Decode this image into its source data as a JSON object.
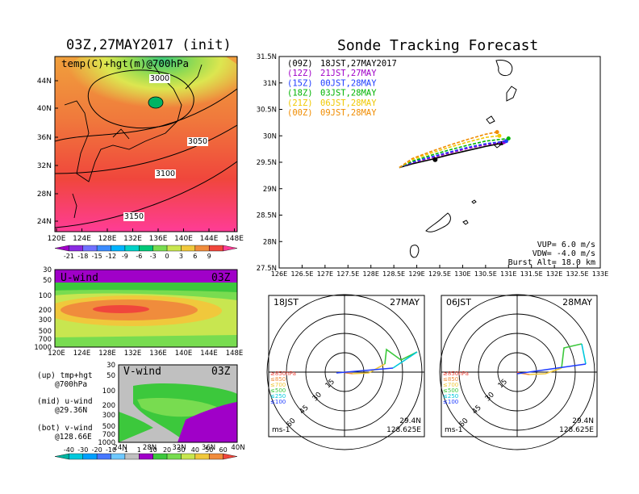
{
  "map_panel": {
    "title": "03Z,27MAY2017 (init)",
    "label": "temp(C)+hgt(m)@700hPa",
    "lat_ticks": [
      "44N",
      "40N",
      "36N",
      "32N",
      "28N",
      "24N"
    ],
    "lon_ticks": [
      "120E",
      "124E",
      "128E",
      "132E",
      "136E",
      "140E",
      "144E",
      "148E"
    ],
    "contour_labels": [
      "3000",
      "3050",
      "3100",
      "3150"
    ]
  },
  "temp_colorbar": {
    "labels": [
      "-21",
      "-18",
      "-15",
      "-12",
      "-9",
      "-6",
      "-3",
      "0",
      "3",
      "6",
      "9"
    ],
    "colors": [
      "#a000c8",
      "#8a2be2",
      "#7070ff",
      "#3c8cff",
      "#00b4ff",
      "#00d2c8",
      "#00c878",
      "#78dc50",
      "#c8e650",
      "#f0c83c",
      "#f08c3c",
      "#f0463c",
      "#ff3c96"
    ]
  },
  "u_wind_panel": {
    "label": "U-wind",
    "time": "03Z",
    "p_ticks": [
      "30",
      "50",
      "100",
      "200",
      "300",
      "500",
      "700",
      "1000"
    ],
    "lon_ticks": [
      "120E",
      "124E",
      "128E",
      "132E",
      "136E",
      "140E",
      "144E",
      "148E"
    ]
  },
  "v_wind_panel": {
    "label": "V-wind",
    "time": "03Z",
    "p_ticks": [
      "30",
      "50",
      "100",
      "200",
      "300",
      "500",
      "700",
      "1000"
    ],
    "lat_ticks": [
      "24N",
      "28N",
      "32N",
      "36N",
      "40N"
    ]
  },
  "notes": {
    "up": [
      "(up) tmp+hgt",
      "@700hPa"
    ],
    "mid": [
      "(mid) u-wind",
      "@29.36N"
    ],
    "bot": [
      "(bot) v-wind",
      "@128.66E"
    ]
  },
  "wind_colorbar": {
    "labels": [
      "-40",
      "-30",
      "-20",
      "-10",
      "-1",
      "1",
      "10",
      "20",
      "30",
      "40",
      "50",
      "60"
    ],
    "colors": [
      "#00b4a0",
      "#00c8dc",
      "#00a0ff",
      "#4678ff",
      "#6ec8ff",
      "#c0c0c0",
      "#a000c8",
      "#3cc83c",
      "#78dc50",
      "#c8e650",
      "#f0c83c",
      "#f08c3c",
      "#f0463c"
    ]
  },
  "tracking": {
    "title": "Sonde Tracking Forecast",
    "lat_ticks": [
      "31.5N",
      "31N",
      "30.5N",
      "30N",
      "29.5N",
      "29N",
      "28.5N",
      "28N",
      "27.5N"
    ],
    "lon_ticks": [
      "126E",
      "126.5E",
      "127E",
      "127.5E",
      "128E",
      "128.5E",
      "129E",
      "129.5E",
      "130E",
      "130.5E",
      "131E",
      "131.5E",
      "132E",
      "132.5E",
      "133E"
    ],
    "legend": [
      {
        "code": "(09Z)",
        "time": "18JST,27MAY2017",
        "color": "#000000"
      },
      {
        "code": "(12Z)",
        "time": "21JST,27MAY",
        "color": "#a000c8"
      },
      {
        "code": "(15Z)",
        "time": "00JST,28MAY",
        "color": "#1e3cff"
      },
      {
        "code": "(18Z)",
        "time": "03JST,28MAY",
        "color": "#00b400"
      },
      {
        "code": "(21Z)",
        "time": "06JST,28MAY",
        "color": "#f0c800"
      },
      {
        "code": "(00Z)",
        "time": "09JST,28MAY",
        "color": "#f08c00"
      }
    ],
    "params": [
      "VUP= 6.0 m/s",
      "VDW= -4.0 m/s",
      "Burst Alt= 18.0 km"
    ]
  },
  "chart_data": {
    "type": "line",
    "title": "Sonde Tracking Forecast",
    "xlim": [
      126,
      133
    ],
    "ylim": [
      27.5,
      31.5
    ],
    "launch": {
      "lon": 128.625,
      "lat": 29.4
    },
    "series": [
      {
        "name": "(09Z) 18JST,27MAY2017",
        "color": "#000000",
        "lon": [
          128.62,
          128.9,
          129.3,
          129.7,
          130.1,
          130.5,
          130.85
        ],
        "lat": [
          29.4,
          29.47,
          29.55,
          29.64,
          29.72,
          29.8,
          29.86
        ],
        "burst": [
          129.4,
          29.55
        ]
      },
      {
        "name": "(12Z) 21JST,27MAY",
        "color": "#a000c8",
        "lon": [
          128.62,
          128.9,
          129.3,
          129.7,
          130.1,
          130.5,
          130.9
        ],
        "lat": [
          29.4,
          29.49,
          29.58,
          29.67,
          29.76,
          29.83,
          29.88
        ]
      },
      {
        "name": "(15Z) 00JST,28MAY",
        "color": "#1e3cff",
        "lon": [
          128.62,
          128.9,
          129.3,
          129.7,
          130.1,
          130.5,
          130.95
        ],
        "lat": [
          29.4,
          29.5,
          29.6,
          29.69,
          29.78,
          29.85,
          29.9
        ]
      },
      {
        "name": "(18Z) 03JST,28MAY",
        "color": "#00b400",
        "lon": [
          128.62,
          128.9,
          129.3,
          129.7,
          130.1,
          130.5,
          131.0
        ],
        "lat": [
          29.4,
          29.52,
          29.63,
          29.73,
          29.82,
          29.9,
          29.95
        ]
      },
      {
        "name": "(21Z) 06JST,28MAY",
        "color": "#f0c800",
        "lon": [
          128.62,
          128.9,
          129.3,
          129.7,
          130.1,
          130.5,
          130.8
        ],
        "lat": [
          29.4,
          29.55,
          29.67,
          29.78,
          29.88,
          29.97,
          30.0
        ]
      },
      {
        "name": "(00Z) 09JST,28MAY",
        "color": "#f08c00",
        "lon": [
          128.62,
          128.9,
          129.3,
          129.7,
          130.1,
          130.5,
          130.75
        ],
        "lat": [
          29.4,
          29.57,
          29.7,
          29.82,
          29.93,
          30.03,
          30.07
        ]
      }
    ]
  },
  "hodo_left": {
    "time": "18JST",
    "date": "27MAY",
    "lat": "29.4N",
    "lon": "128.625E",
    "unit": "ms-1",
    "rings": [
      "15",
      "30",
      "45",
      "60"
    ],
    "levels": [
      "≥850hPa",
      "≤850",
      "≤700",
      "≤500",
      "≤250",
      "≤100"
    ],
    "level_colors": [
      "#f0463c",
      "#f08c3c",
      "#f0c83c",
      "#3cc83c",
      "#00c8dc",
      "#1e3cff"
    ]
  },
  "hodo_right": {
    "time": "06JST",
    "date": "28MAY",
    "lat": "29.4N",
    "lon": "128.625E",
    "unit": "ms-1",
    "rings": [
      "15",
      "30",
      "45",
      "60"
    ],
    "levels": [
      "≥850hPa",
      "≤850",
      "≤700",
      "≤500",
      "≤250",
      "≤100"
    ],
    "level_colors": [
      "#f0463c",
      "#f08c3c",
      "#f0c83c",
      "#3cc83c",
      "#00c8dc",
      "#1e3cff"
    ]
  }
}
